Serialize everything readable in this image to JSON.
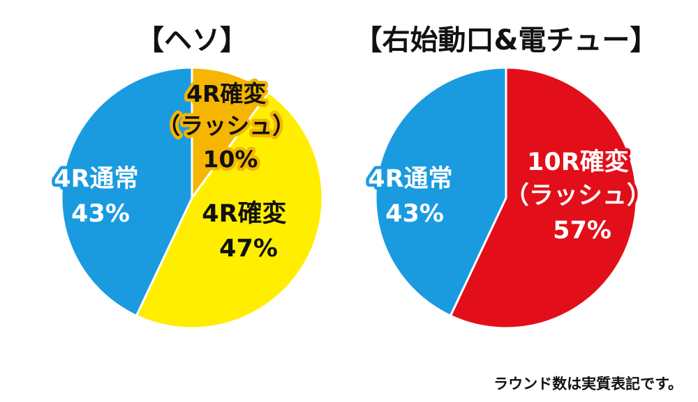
{
  "chart_data": [
    {
      "type": "pie",
      "title": "【ヘソ】",
      "slices": [
        {
          "label": "4R確変（ラッシュ）",
          "value": 10,
          "pct_text": "10%",
          "color": "#f5b500"
        },
        {
          "label": "4R確変",
          "value": 47,
          "pct_text": "47%",
          "color": "#ffee00"
        },
        {
          "label": "4R通常",
          "value": 43,
          "pct_text": "43%",
          "color": "#1a9be0"
        }
      ]
    },
    {
      "type": "pie",
      "title": "【右始動口&電チュー】",
      "slices": [
        {
          "label": "10R確変（ラッシュ）",
          "value": 57,
          "pct_text": "57%",
          "color": "#e20f1a"
        },
        {
          "label": "4R通常",
          "value": 43,
          "pct_text": "43%",
          "color": "#1a9be0"
        }
      ]
    }
  ],
  "slice_labels": [
    {
      "heso_rush": {
        "line1": "4R確変",
        "line2": "（ラッシュ）",
        "line3": "10%"
      },
      "heso_kakuhen": {
        "line1": "4R確変",
        "line2": "47%"
      },
      "heso_tsujo": {
        "line1": "4R通常",
        "line2": "43%"
      }
    },
    {
      "right_rush": {
        "line1": "10R確変",
        "line2": "（ラッシュ）",
        "line3": "57%"
      },
      "right_tsujo": {
        "line1": "4R通常",
        "line2": "43%"
      }
    }
  ],
  "footnote": "ラウンド数は実質表記です。"
}
